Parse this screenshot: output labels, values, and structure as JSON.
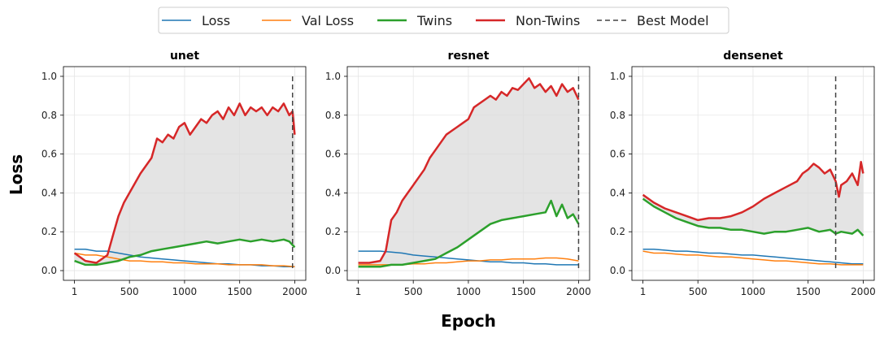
{
  "figure": {
    "xlabel": "Epoch",
    "ylabel": "Loss"
  },
  "legend": {
    "placement": "top-center",
    "entries": [
      {
        "label": "Loss",
        "color": "#1f77b4",
        "style": "solid",
        "width": 1.5
      },
      {
        "label": "Val Loss",
        "color": "#ff7f0e",
        "style": "solid",
        "width": 1.5
      },
      {
        "label": "Twins",
        "color": "#2ca02c",
        "style": "solid",
        "width": 2.5
      },
      {
        "label": "Non-Twins",
        "color": "#d62728",
        "style": "solid",
        "width": 2.5
      },
      {
        "label": "Best Model",
        "color": "#444444",
        "style": "dashed",
        "width": 1.5
      }
    ]
  },
  "chart_data": [
    {
      "type": "line",
      "title": "unet",
      "xlim": [
        1,
        2000
      ],
      "ylim": [
        0,
        1.0
      ],
      "xticks": [
        "1",
        "500",
        "1000",
        "1500",
        "2000"
      ],
      "yticks": [
        "0.0",
        "0.2",
        "0.4",
        "0.6",
        "0.8",
        "1.0"
      ],
      "grid": true,
      "best_model_epoch": 1980,
      "shade_between": [
        "Twins",
        "Non-Twins"
      ],
      "series": [
        {
          "name": "Loss",
          "x": [
            1,
            100,
            200,
            300,
            400,
            500,
            600,
            700,
            800,
            900,
            1000,
            1100,
            1200,
            1300,
            1400,
            1500,
            1600,
            1700,
            1800,
            1900,
            2000
          ],
          "y": [
            0.11,
            0.11,
            0.1,
            0.1,
            0.09,
            0.08,
            0.07,
            0.065,
            0.06,
            0.055,
            0.05,
            0.045,
            0.04,
            0.035,
            0.035,
            0.03,
            0.03,
            0.025,
            0.025,
            0.02,
            0.02
          ]
        },
        {
          "name": "Val Loss",
          "x": [
            1,
            100,
            200,
            300,
            400,
            500,
            600,
            700,
            800,
            900,
            1000,
            1100,
            1200,
            1300,
            1400,
            1500,
            1600,
            1700,
            1800,
            1900,
            2000
          ],
          "y": [
            0.09,
            0.08,
            0.08,
            0.07,
            0.06,
            0.05,
            0.05,
            0.045,
            0.045,
            0.04,
            0.04,
            0.035,
            0.035,
            0.035,
            0.03,
            0.03,
            0.03,
            0.03,
            0.025,
            0.025,
            0.02
          ]
        },
        {
          "name": "Twins",
          "x": [
            1,
            100,
            200,
            300,
            400,
            500,
            600,
            700,
            800,
            900,
            1000,
            1100,
            1200,
            1300,
            1400,
            1500,
            1600,
            1700,
            1800,
            1900,
            1950,
            2000
          ],
          "y": [
            0.05,
            0.03,
            0.03,
            0.04,
            0.05,
            0.07,
            0.08,
            0.1,
            0.11,
            0.12,
            0.13,
            0.14,
            0.15,
            0.14,
            0.15,
            0.16,
            0.15,
            0.16,
            0.15,
            0.16,
            0.15,
            0.12
          ]
        },
        {
          "name": "Non-Twins",
          "x": [
            1,
            100,
            200,
            300,
            350,
            400,
            450,
            500,
            600,
            700,
            750,
            800,
            850,
            900,
            950,
            1000,
            1050,
            1100,
            1150,
            1200,
            1250,
            1300,
            1350,
            1400,
            1450,
            1500,
            1550,
            1600,
            1650,
            1700,
            1750,
            1800,
            1850,
            1900,
            1950,
            1980,
            2000
          ],
          "y": [
            0.09,
            0.05,
            0.04,
            0.08,
            0.18,
            0.28,
            0.35,
            0.4,
            0.5,
            0.58,
            0.68,
            0.66,
            0.7,
            0.68,
            0.74,
            0.76,
            0.7,
            0.74,
            0.78,
            0.76,
            0.8,
            0.82,
            0.78,
            0.84,
            0.8,
            0.86,
            0.8,
            0.84,
            0.82,
            0.84,
            0.8,
            0.84,
            0.82,
            0.86,
            0.8,
            0.82,
            0.7
          ]
        }
      ]
    },
    {
      "type": "line",
      "title": "resnet",
      "xlim": [
        1,
        2000
      ],
      "ylim": [
        0,
        1.0
      ],
      "xticks": [
        "1",
        "500",
        "1000",
        "1500",
        "2000"
      ],
      "yticks": [
        "0.0",
        "0.2",
        "0.4",
        "0.6",
        "0.8",
        "1.0"
      ],
      "grid": true,
      "best_model_epoch": 2000,
      "shade_between": [
        "Twins",
        "Non-Twins"
      ],
      "series": [
        {
          "name": "Loss",
          "x": [
            1,
            100,
            200,
            300,
            400,
            500,
            600,
            700,
            800,
            900,
            1000,
            1100,
            1200,
            1300,
            1400,
            1500,
            1600,
            1700,
            1800,
            1900,
            2000
          ],
          "y": [
            0.1,
            0.1,
            0.1,
            0.095,
            0.09,
            0.08,
            0.075,
            0.07,
            0.065,
            0.06,
            0.055,
            0.05,
            0.045,
            0.045,
            0.04,
            0.04,
            0.035,
            0.035,
            0.03,
            0.03,
            0.03
          ]
        },
        {
          "name": "Val Loss",
          "x": [
            1,
            100,
            200,
            300,
            400,
            500,
            600,
            700,
            800,
            900,
            1000,
            1100,
            1200,
            1300,
            1400,
            1500,
            1600,
            1700,
            1800,
            1900,
            2000
          ],
          "y": [
            0.03,
            0.03,
            0.03,
            0.03,
            0.03,
            0.035,
            0.035,
            0.04,
            0.04,
            0.045,
            0.05,
            0.05,
            0.055,
            0.055,
            0.06,
            0.06,
            0.06,
            0.065,
            0.065,
            0.06,
            0.05
          ]
        },
        {
          "name": "Twins",
          "x": [
            1,
            100,
            200,
            300,
            400,
            500,
            600,
            700,
            800,
            900,
            1000,
            1100,
            1200,
            1300,
            1400,
            1500,
            1600,
            1700,
            1750,
            1800,
            1850,
            1900,
            1950,
            2000
          ],
          "y": [
            0.02,
            0.02,
            0.02,
            0.03,
            0.03,
            0.04,
            0.05,
            0.06,
            0.09,
            0.12,
            0.16,
            0.2,
            0.24,
            0.26,
            0.27,
            0.28,
            0.29,
            0.3,
            0.36,
            0.28,
            0.34,
            0.27,
            0.29,
            0.24
          ]
        },
        {
          "name": "Non-Twins",
          "x": [
            1,
            100,
            200,
            250,
            300,
            350,
            400,
            450,
            500,
            550,
            600,
            650,
            700,
            750,
            800,
            850,
            900,
            950,
            1000,
            1050,
            1100,
            1150,
            1200,
            1250,
            1300,
            1350,
            1400,
            1450,
            1500,
            1550,
            1600,
            1650,
            1700,
            1750,
            1800,
            1850,
            1900,
            1950,
            2000
          ],
          "y": [
            0.04,
            0.04,
            0.05,
            0.1,
            0.26,
            0.3,
            0.36,
            0.4,
            0.44,
            0.48,
            0.52,
            0.58,
            0.62,
            0.66,
            0.7,
            0.72,
            0.74,
            0.76,
            0.78,
            0.84,
            0.86,
            0.88,
            0.9,
            0.88,
            0.92,
            0.9,
            0.94,
            0.93,
            0.96,
            0.99,
            0.94,
            0.96,
            0.92,
            0.95,
            0.9,
            0.96,
            0.92,
            0.94,
            0.88
          ]
        }
      ]
    },
    {
      "type": "line",
      "title": "densenet",
      "xlim": [
        1,
        2000
      ],
      "ylim": [
        0,
        1.0
      ],
      "xticks": [
        "1",
        "500",
        "1000",
        "1500",
        "2000"
      ],
      "yticks": [
        "0.0",
        "0.2",
        "0.4",
        "0.6",
        "0.8",
        "1.0"
      ],
      "grid": true,
      "best_model_epoch": 1750,
      "shade_between": [
        "Twins",
        "Non-Twins"
      ],
      "series": [
        {
          "name": "Loss",
          "x": [
            1,
            100,
            200,
            300,
            400,
            500,
            600,
            700,
            800,
            900,
            1000,
            1100,
            1200,
            1300,
            1400,
            1500,
            1600,
            1700,
            1800,
            1900,
            2000
          ],
          "y": [
            0.11,
            0.11,
            0.105,
            0.1,
            0.1,
            0.095,
            0.09,
            0.09,
            0.085,
            0.08,
            0.08,
            0.075,
            0.07,
            0.065,
            0.06,
            0.055,
            0.05,
            0.045,
            0.04,
            0.035,
            0.035
          ]
        },
        {
          "name": "Val Loss",
          "x": [
            1,
            100,
            200,
            300,
            400,
            500,
            600,
            700,
            800,
            900,
            1000,
            1100,
            1200,
            1300,
            1400,
            1500,
            1600,
            1700,
            1800,
            1900,
            2000
          ],
          "y": [
            0.1,
            0.09,
            0.09,
            0.085,
            0.08,
            0.08,
            0.075,
            0.07,
            0.07,
            0.065,
            0.06,
            0.055,
            0.05,
            0.05,
            0.045,
            0.04,
            0.035,
            0.035,
            0.03,
            0.03,
            0.03
          ]
        },
        {
          "name": "Twins",
          "x": [
            1,
            100,
            200,
            300,
            400,
            500,
            600,
            700,
            800,
            900,
            1000,
            1100,
            1200,
            1300,
            1400,
            1500,
            1600,
            1700,
            1750,
            1800,
            1900,
            1950,
            2000
          ],
          "y": [
            0.37,
            0.33,
            0.3,
            0.27,
            0.25,
            0.23,
            0.22,
            0.22,
            0.21,
            0.21,
            0.2,
            0.19,
            0.2,
            0.2,
            0.21,
            0.22,
            0.2,
            0.21,
            0.19,
            0.2,
            0.19,
            0.21,
            0.18
          ]
        },
        {
          "name": "Non-Twins",
          "x": [
            1,
            100,
            200,
            300,
            400,
            500,
            600,
            700,
            800,
            900,
            1000,
            1100,
            1200,
            1300,
            1400,
            1450,
            1500,
            1550,
            1600,
            1650,
            1700,
            1750,
            1780,
            1800,
            1850,
            1900,
            1950,
            1980,
            2000
          ],
          "y": [
            0.39,
            0.35,
            0.32,
            0.3,
            0.28,
            0.26,
            0.27,
            0.27,
            0.28,
            0.3,
            0.33,
            0.37,
            0.4,
            0.43,
            0.46,
            0.5,
            0.52,
            0.55,
            0.53,
            0.5,
            0.52,
            0.46,
            0.38,
            0.44,
            0.46,
            0.5,
            0.44,
            0.56,
            0.5
          ]
        }
      ]
    }
  ]
}
